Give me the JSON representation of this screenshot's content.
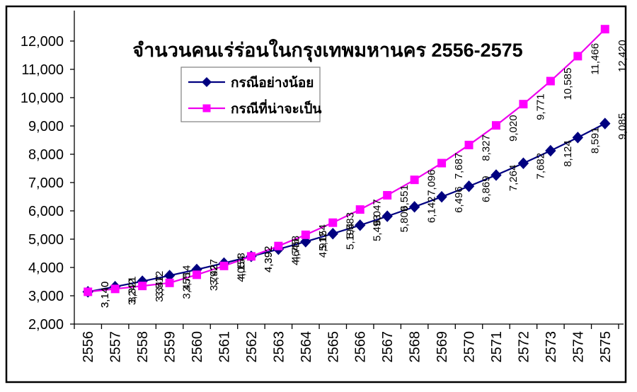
{
  "title": "จำนวนคนเร่ร่อนในกรุงเทพมหานคร 2556-2575",
  "legend": {
    "entries": [
      {
        "label": "กรณีอย่างน้อย",
        "marker": "diamond",
        "color": "#000080"
      },
      {
        "label": "กรณีที่น่าจะเป็น",
        "marker": "square",
        "color": "#ff00ff"
      }
    ]
  },
  "chart_data": {
    "type": "line",
    "title": "จำนวนคนเร่ร่อนในกรุงเทพมหานคร 2556-2575",
    "categories": [
      "2556",
      "2557",
      "2558",
      "2559",
      "2560",
      "2561",
      "2562",
      "2563",
      "2564",
      "2565",
      "2566",
      "2567",
      "2568",
      "2569",
      "2570",
      "2571",
      "2572",
      "2573",
      "2574",
      "2575"
    ],
    "series": [
      {
        "name": "กรณีอย่างน้อย",
        "marker": "diamond",
        "line_color": "#000080",
        "marker_color": "#000080",
        "values": [
          3140,
          3321,
          3512,
          3714,
          3927,
          4153,
          4392,
          4645,
          4912,
          5194,
          5493,
          5809,
          6142,
          6496,
          6869,
          7264,
          7682,
          8124,
          8591,
          9085
        ]
      },
      {
        "name": "กรณีที่น่าจะเป็น",
        "marker": "square",
        "line_color": "#ee00ee",
        "marker_color": "#ff00ff",
        "values": [
          3140,
          3242,
          3347,
          3455,
          3742,
          4054,
          4392,
          4758,
          5154,
          5583,
          6047,
          6551,
          7096,
          7687,
          8327,
          9020,
          9771,
          10585,
          11466,
          12420
        ]
      }
    ],
    "xlabel": "",
    "ylabel": "",
    "ylim": [
      2000,
      12000
    ],
    "yticks": [
      2000,
      3000,
      4000,
      5000,
      6000,
      7000,
      8000,
      9000,
      10000,
      11000,
      12000
    ],
    "grid": false,
    "data_labels": true,
    "data_label_rotation_deg": 90,
    "x_label_rotation_deg": 90,
    "legend_position": "inside-top-left"
  },
  "colors": {
    "background": "#ffffff",
    "frame_border": "#000000",
    "axis": "#000000",
    "text": "#000000",
    "series_min_case": "#000080",
    "series_probable_case": "#ff00ff",
    "legend_border": "#808080"
  }
}
